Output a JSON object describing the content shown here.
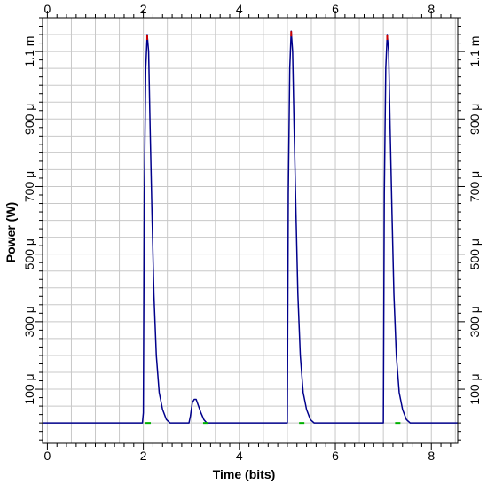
{
  "chart_data": {
    "type": "line",
    "title": "",
    "xlabel": "Time (bits)",
    "ylabel": "Power (W)",
    "xlim": [
      -0.1,
      8.55
    ],
    "ylim": [
      -6e-05,
      0.0012
    ],
    "grid": true,
    "x_ticks": [
      {
        "value": 0,
        "label": "0"
      },
      {
        "value": 2,
        "label": "2"
      },
      {
        "value": 4,
        "label": "4"
      },
      {
        "value": 6,
        "label": "6"
      },
      {
        "value": 8,
        "label": "8"
      }
    ],
    "y_ticks": [
      {
        "value": 0.0001,
        "label": "100 μ"
      },
      {
        "value": 0.0003,
        "label": "300 μ"
      },
      {
        "value": 0.0005,
        "label": "500 μ"
      },
      {
        "value": 0.0007,
        "label": "700 μ"
      },
      {
        "value": 0.0009,
        "label": "900 μ"
      },
      {
        "value": 0.0011,
        "label": "1.1 m"
      }
    ],
    "colors": {
      "signal": "#00008b",
      "peak": "#cc0000",
      "baseline": "#00b000",
      "grid": "#c8c8c8"
    },
    "series": [
      {
        "color": "#00008b",
        "x": [
          -0.1,
          1.98,
          2.0,
          2.02,
          2.05,
          2.08,
          2.11,
          2.14,
          2.18,
          2.22,
          2.27,
          2.33,
          2.4,
          2.48,
          2.56,
          2.6,
          2.95,
          2.98,
          3.02,
          3.06,
          3.1,
          3.15,
          3.2,
          3.26,
          3.32,
          5.0,
          5.02,
          5.05,
          5.08,
          5.11,
          5.14,
          5.18,
          5.22,
          5.27,
          5.33,
          5.4,
          5.48,
          5.56,
          5.6,
          7.0,
          7.02,
          7.05,
          7.08,
          7.11,
          7.14,
          7.18,
          7.22,
          7.27,
          7.33,
          7.4,
          7.48,
          7.56,
          7.6,
          8.55
        ],
        "y": [
          0,
          0,
          3e-05,
          0.00068,
          0.00105,
          0.00115,
          0.0011,
          0.00088,
          0.00062,
          0.00038,
          0.0002,
          9e-05,
          4e-05,
          1e-05,
          0,
          0,
          0,
          2e-05,
          6e-05,
          7e-05,
          7e-05,
          5e-05,
          3e-05,
          1e-05,
          0,
          0,
          0.00068,
          0.00105,
          0.00116,
          0.0011,
          0.00088,
          0.00062,
          0.00038,
          0.0002,
          9e-05,
          4e-05,
          1e-05,
          0,
          0,
          0,
          0.00068,
          0.00105,
          0.00115,
          0.0011,
          0.00088,
          0.00062,
          0.00038,
          0.0002,
          9e-05,
          4e-05,
          1e-05,
          0,
          0,
          0
        ]
      }
    ],
    "peak_markers": [
      {
        "x": 2.08,
        "y": 0.00115
      },
      {
        "x": 5.08,
        "y": 0.00116
      },
      {
        "x": 7.08,
        "y": 0.00115
      }
    ],
    "baseline_marks": [
      {
        "x": 2.1,
        "y": 0
      },
      {
        "x": 3.3,
        "y": 0
      },
      {
        "x": 5.3,
        "y": 0
      },
      {
        "x": 7.3,
        "y": 0
      }
    ]
  }
}
